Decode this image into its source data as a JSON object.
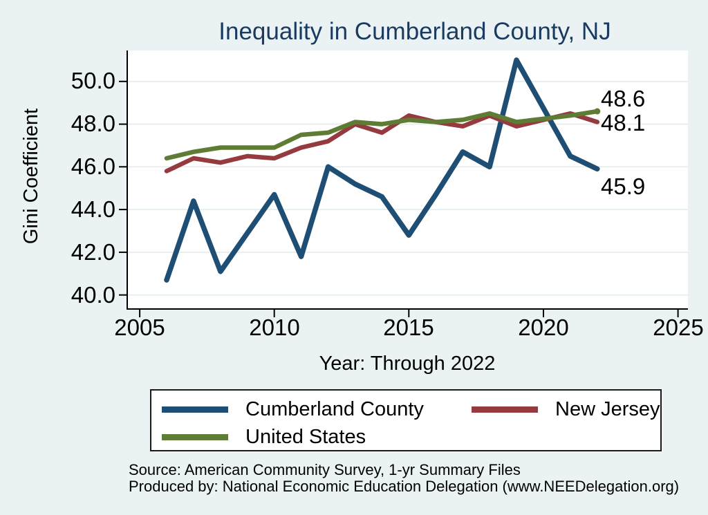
{
  "chart_data": {
    "type": "line",
    "title": "Inequality in Cumberland County, NJ",
    "xlabel": "Year: Through 2022",
    "ylabel": "Gini Coefficient",
    "x": [
      2006,
      2007,
      2008,
      2009,
      2010,
      2011,
      2012,
      2013,
      2014,
      2015,
      2016,
      2017,
      2018,
      2019,
      2021,
      2022
    ],
    "series": [
      {
        "name": "Cumberland County",
        "color": "#1f4e74",
        "stroke_width": 7.5,
        "values": [
          40.7,
          44.4,
          41.1,
          42.9,
          44.7,
          41.8,
          46.0,
          45.2,
          44.6,
          42.8,
          44.7,
          46.7,
          46.0,
          51.0,
          46.5,
          45.9
        ],
        "end_label": "45.9",
        "end_marker": false
      },
      {
        "name": "New Jersey",
        "color": "#953b40",
        "stroke_width": 6.5,
        "values": [
          45.8,
          46.4,
          46.2,
          46.5,
          46.4,
          46.9,
          47.2,
          48.0,
          47.6,
          48.4,
          48.1,
          47.9,
          48.4,
          47.9,
          48.5,
          48.1
        ],
        "end_label": "48.1",
        "end_marker": false
      },
      {
        "name": "United States",
        "color": "#5e7c34",
        "stroke_width": 6.5,
        "values": [
          46.4,
          46.7,
          46.9,
          46.9,
          46.9,
          47.5,
          47.6,
          48.1,
          48.0,
          48.2,
          48.1,
          48.2,
          48.5,
          48.1,
          48.4,
          48.6
        ],
        "end_label": "48.6",
        "end_marker": true
      }
    ],
    "ytick_values": [
      40,
      42,
      44,
      46,
      48,
      50
    ],
    "ytick_labels": [
      "40.0",
      "42.0",
      "44.0",
      "46.0",
      "48.0",
      "50.0"
    ],
    "xtick_values": [
      2005,
      2010,
      2015,
      2020,
      2025
    ],
    "xtick_labels": [
      "2005",
      "2010",
      "2015",
      "2020",
      "2025"
    ],
    "xlim": [
      2004.51,
      2025.37
    ],
    "ylim": [
      39.31,
      51.45
    ],
    "grid": "horizontal",
    "legend_position": "bottom",
    "colors": {
      "background": "#eaf2f3",
      "plot_background": "#ffffff",
      "gridline": "#e2edee",
      "axis": "#000000",
      "title": "#1b3a5f"
    }
  },
  "footer": {
    "source": "Source: American Community Survey, 1-yr Summary Files",
    "produced_by": "Produced by: National Economic Education Delegation (www.NEEDelegation.org)"
  }
}
